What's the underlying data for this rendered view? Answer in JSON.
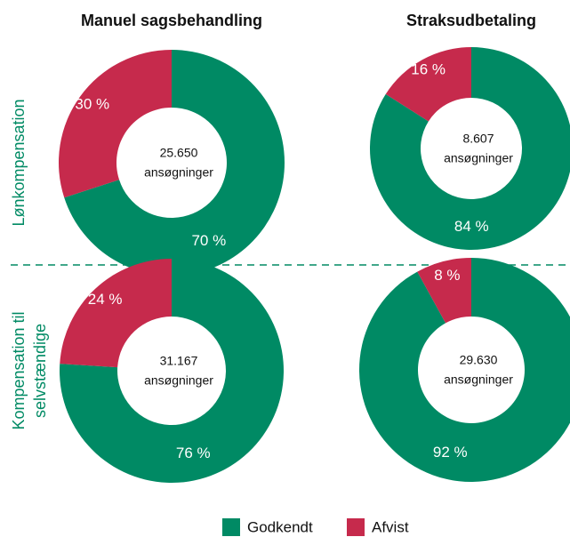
{
  "columns": [
    "Manuel sagsbehandling",
    "Straksudbetaling"
  ],
  "rows": [
    [
      "Lønkompensation"
    ],
    [
      "Kompensation til",
      "selvstændige"
    ]
  ],
  "legend": [
    {
      "name": "Godkendt",
      "color": "#008a64"
    },
    {
      "name": "Afvist",
      "color": "#c62a4c"
    }
  ],
  "chart_data": [
    {
      "type": "pie",
      "values": [
        70,
        30
      ],
      "value_labels": [
        "70 %",
        "30 %"
      ],
      "center": [
        "25.650",
        "ansøgninger"
      ]
    },
    {
      "type": "pie",
      "values": [
        84,
        16
      ],
      "value_labels": [
        "84 %",
        "16 %"
      ],
      "center": [
        "8.607",
        "ansøgninger"
      ]
    },
    {
      "type": "pie",
      "values": [
        76,
        24
      ],
      "value_labels": [
        "76 %",
        "24 %"
      ],
      "center": [
        "31.167",
        "ansøgninger"
      ]
    },
    {
      "type": "pie",
      "values": [
        92,
        8
      ],
      "value_labels": [
        "92 %",
        "8 %"
      ],
      "center": [
        "29.630",
        "ansøgninger"
      ]
    }
  ]
}
